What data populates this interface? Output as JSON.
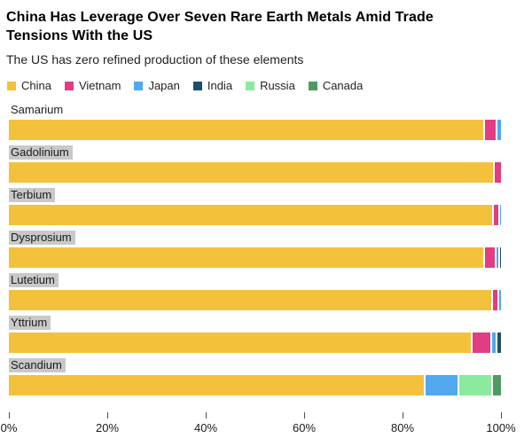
{
  "header": {
    "title_lines": [
      "China Has Leverage Over Seven Rare Earth Metals Amid Trade",
      "Tensions With the US"
    ],
    "subtitle": "The US has zero refined production of these elements"
  },
  "chart_data": {
    "type": "bar",
    "orientation": "horizontal",
    "stacked": true,
    "unit": "percent",
    "title": "China Has Leverage Over Seven Rare Earth Metals Amid Trade Tensions With the US",
    "subtitle": "The US has zero refined production of these elements",
    "xlim": [
      0,
      100
    ],
    "grid": false,
    "legend_position": "top",
    "legend": [
      {
        "name": "China",
        "color": "#F3C13C"
      },
      {
        "name": "Vietnam",
        "color": "#E23C82"
      },
      {
        "name": "Japan",
        "color": "#51A8EE"
      },
      {
        "name": "India",
        "color": "#1F4E6C"
      },
      {
        "name": "Russia",
        "color": "#8BEA9F"
      },
      {
        "name": "Canada",
        "color": "#4F9A60"
      }
    ],
    "rows": [
      {
        "label": "Samarium",
        "label_highlighted": false,
        "segments": [
          {
            "name": "China",
            "value": 96.4
          },
          {
            "name": "Vietnam",
            "value": 2.6
          },
          {
            "name": "Japan",
            "value": 1.0
          }
        ]
      },
      {
        "label": "Gadolinium",
        "label_highlighted": true,
        "segments": [
          {
            "name": "China",
            "value": 98.4
          },
          {
            "name": "Vietnam",
            "value": 1.6
          }
        ]
      },
      {
        "label": "Terbium",
        "label_highlighted": true,
        "segments": [
          {
            "name": "China",
            "value": 98.2
          },
          {
            "name": "Vietnam",
            "value": 1.3
          },
          {
            "name": "Japan",
            "value": 0.5
          }
        ]
      },
      {
        "label": "Dysprosium",
        "label_highlighted": true,
        "segments": [
          {
            "name": "China",
            "value": 96.4
          },
          {
            "name": "Vietnam",
            "value": 2.3
          },
          {
            "name": "Japan",
            "value": 0.8
          },
          {
            "name": "India",
            "value": 0.5
          }
        ]
      },
      {
        "label": "Lutetium",
        "label_highlighted": true,
        "segments": [
          {
            "name": "China",
            "value": 98.0
          },
          {
            "name": "Vietnam",
            "value": 1.2
          },
          {
            "name": "Japan",
            "value": 0.8
          }
        ]
      },
      {
        "label": "Yttrium",
        "label_highlighted": true,
        "segments": [
          {
            "name": "China",
            "value": 93.8
          },
          {
            "name": "Vietnam",
            "value": 4.0
          },
          {
            "name": "Japan",
            "value": 1.1
          },
          {
            "name": "India",
            "value": 1.1
          }
        ]
      },
      {
        "label": "Scandium",
        "label_highlighted": true,
        "segments": [
          {
            "name": "China",
            "value": 84.4
          },
          {
            "name": "Japan",
            "value": 6.7
          },
          {
            "name": "Russia",
            "value": 6.9
          },
          {
            "name": "Canada",
            "value": 2.0
          }
        ]
      }
    ],
    "x_ticks": [
      {
        "value": 0,
        "label": "0%"
      },
      {
        "value": 20,
        "label": "20%"
      },
      {
        "value": 40,
        "label": "40%"
      },
      {
        "value": 60,
        "label": "60%"
      },
      {
        "value": 80,
        "label": "80%"
      },
      {
        "value": 100,
        "label": "100%"
      }
    ]
  }
}
